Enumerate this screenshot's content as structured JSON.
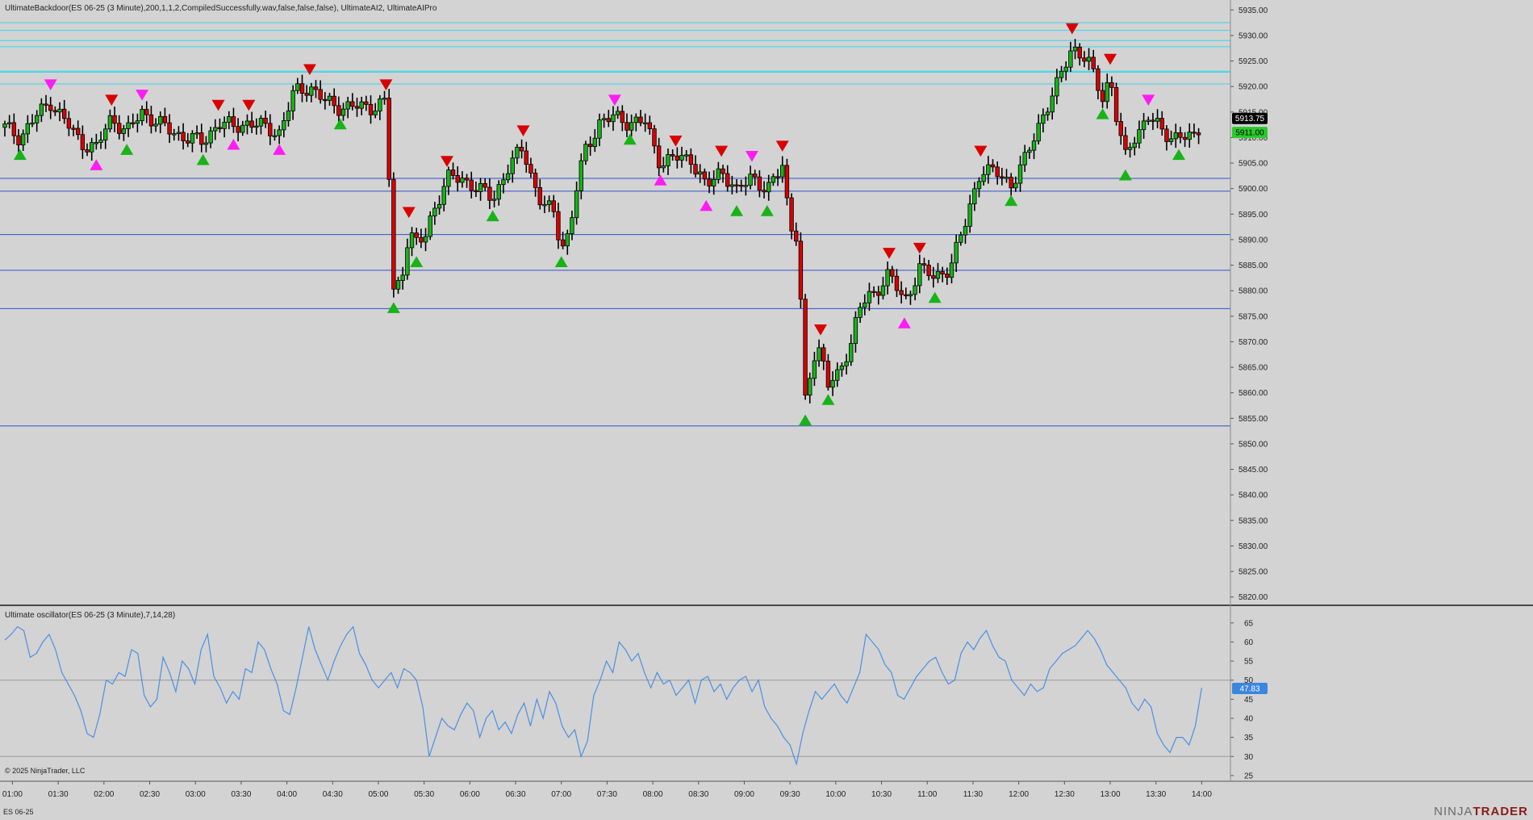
{
  "main_indicator_label": "UltimateBackdoor(ES 06-25 (3 Minute),200,1,1,2,CompiledSuccessfully.wav,false,false,false), UltimateAI2, UltimateAIPro",
  "oscillator_label": "Ultimate oscillator(ES 06-25 (3 Minute),7,14,28)",
  "copyright": "© 2025 NinjaTrader, LLC",
  "instrument_tab": "ES 06-25",
  "logo": {
    "prefix": "NINJA",
    "suffix": "TRADER"
  },
  "colors": {
    "bull": "#17b317",
    "bear": "#d90000",
    "magenta": "#ff1cf3",
    "resistance": "#34d7e6",
    "support": "#3350cc",
    "oscillator": "#4a90e2",
    "last_price_bg": "#000000",
    "level_bg": "#2bc92b",
    "osc_bg": "#3a86e0"
  },
  "chart_data": [
    {
      "type": "candlestick",
      "title": "",
      "instrument": "ES 06-25",
      "interval": "3 Minute",
      "x_ticks": [
        "01:00",
        "01:30",
        "02:00",
        "02:30",
        "03:00",
        "03:30",
        "04:00",
        "04:30",
        "05:00",
        "05:30",
        "06:00",
        "06:30",
        "07:00",
        "07:30",
        "08:00",
        "08:30",
        "09:00",
        "09:30",
        "10:00",
        "10:30",
        "11:00",
        "11:30",
        "12:00",
        "12:30",
        "13:00",
        "13:30",
        "14:00"
      ],
      "y_ticks": [
        "5935.00",
        "5930.00",
        "5925.00",
        "5920.00",
        "5915.00",
        "5910.00",
        "5905.00",
        "5900.00",
        "5895.00",
        "5890.00",
        "5885.00",
        "5880.00",
        "5875.00",
        "5870.00",
        "5865.00",
        "5860.00",
        "5855.00",
        "5850.00",
        "5845.00",
        "5840.00",
        "5835.00",
        "5830.00",
        "5825.00",
        "5820.00"
      ],
      "ylim": [
        5819,
        5936
      ],
      "last_price": "5913.75",
      "marked_level": "5911.00",
      "resistance_levels": [
        5932.5,
        5931.0,
        5929.0,
        5927.8,
        5923.0,
        5922.8,
        5920.5
      ],
      "support_levels": [
        5902.0,
        5899.5,
        5891.0,
        5884.0,
        5876.5,
        5853.5
      ],
      "price_path": [
        [
          "00:55",
          5912
        ],
        [
          "01:05",
          5910
        ],
        [
          "01:15",
          5914
        ],
        [
          "01:25",
          5917
        ],
        [
          "01:35",
          5913
        ],
        [
          "01:45",
          5909
        ],
        [
          "01:55",
          5908
        ],
        [
          "02:05",
          5914
        ],
        [
          "02:15",
          5911
        ],
        [
          "02:25",
          5915
        ],
        [
          "02:35",
          5913
        ],
        [
          "02:45",
          5911
        ],
        [
          "02:55",
          5910
        ],
        [
          "03:05",
          5909
        ],
        [
          "03:15",
          5913
        ],
        [
          "03:25",
          5912
        ],
        [
          "03:35",
          5913
        ],
        [
          "03:45",
          5912
        ],
        [
          "03:55",
          5911
        ],
        [
          "04:05",
          5919
        ],
        [
          "04:15",
          5920
        ],
        [
          "04:25",
          5917
        ],
        [
          "04:35",
          5916
        ],
        [
          "04:45",
          5916
        ],
        [
          "04:55",
          5916
        ],
        [
          "05:05",
          5917
        ],
        [
          "05:10",
          5880
        ],
        [
          "05:15",
          5882
        ],
        [
          "05:20",
          5892
        ],
        [
          "05:25",
          5889
        ],
        [
          "05:30",
          5890
        ],
        [
          "05:35",
          5895
        ],
        [
          "05:45",
          5902
        ],
        [
          "05:55",
          5902
        ],
        [
          "06:05",
          5900
        ],
        [
          "06:15",
          5898
        ],
        [
          "06:25",
          5904
        ],
        [
          "06:35",
          5908
        ],
        [
          "06:45",
          5898
        ],
        [
          "06:55",
          5895
        ],
        [
          "07:00",
          5889
        ],
        [
          "07:05",
          5891
        ],
        [
          "07:10",
          5900
        ],
        [
          "07:15",
          5907
        ],
        [
          "07:25",
          5913
        ],
        [
          "07:35",
          5914
        ],
        [
          "07:45",
          5913
        ],
        [
          "07:55",
          5913
        ],
        [
          "08:05",
          5905
        ],
        [
          "08:15",
          5906
        ],
        [
          "08:25",
          5906
        ],
        [
          "08:35",
          5900
        ],
        [
          "08:45",
          5904
        ],
        [
          "08:55",
          5899
        ],
        [
          "09:05",
          5903
        ],
        [
          "09:15",
          5899
        ],
        [
          "09:25",
          5905
        ],
        [
          "09:30",
          5893
        ],
        [
          "09:35",
          5890
        ],
        [
          "09:40",
          5858
        ],
        [
          "09:45",
          5867
        ],
        [
          "09:50",
          5869
        ],
        [
          "09:55",
          5862
        ],
        [
          "10:00",
          5862
        ],
        [
          "10:05",
          5866
        ],
        [
          "10:10",
          5870
        ],
        [
          "10:15",
          5877
        ],
        [
          "10:25",
          5879
        ],
        [
          "10:35",
          5884
        ],
        [
          "10:45",
          5877
        ],
        [
          "10:55",
          5885
        ],
        [
          "11:05",
          5882
        ],
        [
          "11:15",
          5885
        ],
        [
          "11:25",
          5893
        ],
        [
          "11:35",
          5904
        ],
        [
          "11:45",
          5903
        ],
        [
          "11:55",
          5901
        ],
        [
          "12:05",
          5906
        ],
        [
          "12:15",
          5914
        ],
        [
          "12:25",
          5920
        ],
        [
          "12:35",
          5928
        ],
        [
          "12:45",
          5925
        ],
        [
          "12:55",
          5918
        ],
        [
          "13:00",
          5922
        ],
        [
          "13:05",
          5912
        ],
        [
          "13:10",
          5906
        ],
        [
          "13:15",
          5910
        ],
        [
          "13:25",
          5914
        ],
        [
          "13:35",
          5911
        ],
        [
          "13:45",
          5910
        ],
        [
          "13:55",
          5910
        ],
        [
          "14:00",
          5913
        ]
      ]
    },
    {
      "type": "line",
      "title": "Ultimate oscillator",
      "series": [
        {
          "name": "Ultimate oscillator",
          "values": [
            60.5,
            62,
            64,
            63,
            56,
            57,
            60,
            62,
            58,
            52,
            49,
            46,
            42,
            36,
            35,
            41,
            50,
            49,
            52,
            51,
            58,
            57,
            46,
            43,
            45,
            56,
            52,
            47,
            55,
            53,
            49,
            58,
            62,
            51,
            48,
            44,
            47,
            45,
            53,
            52,
            60,
            58,
            53,
            49,
            42,
            41,
            48,
            56,
            64,
            58,
            54,
            50,
            55,
            59,
            62,
            64,
            57,
            54,
            50,
            48,
            50,
            52,
            48,
            53,
            52,
            50,
            43,
            30,
            35,
            40,
            38,
            37,
            41,
            44,
            42,
            35,
            40,
            42,
            37,
            39,
            36,
            41,
            44,
            38,
            45,
            40,
            47,
            44,
            38,
            35,
            37,
            30,
            34,
            46,
            50,
            55,
            52,
            60,
            58,
            55,
            57,
            52,
            48,
            52,
            49,
            50,
            46,
            48,
            50,
            44,
            50,
            51,
            47,
            49,
            45,
            48,
            50,
            51,
            47,
            50,
            43,
            40,
            38,
            35,
            33,
            28,
            36,
            42,
            47,
            45,
            47,
            49,
            46,
            44,
            48,
            52,
            62,
            60,
            58,
            54,
            52,
            46,
            45,
            48,
            51,
            53,
            55,
            56,
            52,
            49,
            50,
            57,
            60,
            58,
            61,
            63,
            59,
            56,
            55,
            50,
            48,
            46,
            49,
            47,
            48,
            53,
            55,
            57,
            58,
            59,
            61,
            63,
            61,
            58,
            54,
            52,
            50,
            48,
            44,
            42,
            45,
            43,
            36,
            33,
            31,
            35,
            35,
            33,
            38,
            48
          ]
        }
      ],
      "ylim": [
        23.5,
        67.5
      ],
      "y_ticks": [
        "65",
        "60",
        "55",
        "50",
        "45",
        "40",
        "35",
        "30",
        "25"
      ],
      "reference_lines": [
        50,
        30
      ],
      "last_value": "47.83"
    }
  ]
}
